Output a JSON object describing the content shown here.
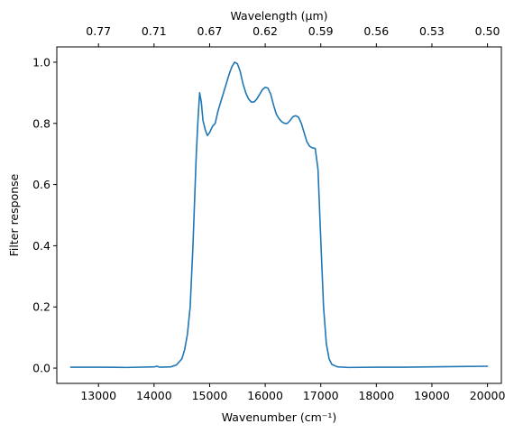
{
  "chart_data": {
    "type": "line",
    "xlabel": "Wavenumber (cm⁻¹)",
    "ylabel": "Filter response",
    "top_xlabel": "Wavelength (μm)",
    "xlim": [
      12250,
      20250
    ],
    "ylim": [
      -0.05,
      1.05
    ],
    "xticks": [
      13000,
      14000,
      15000,
      16000,
      17000,
      18000,
      19000,
      20000
    ],
    "yticks": [
      0.0,
      0.2,
      0.4,
      0.6,
      0.8,
      1.0
    ],
    "top_ticks": [
      {
        "label": "0.77",
        "wavenumber": 13000
      },
      {
        "label": "0.71",
        "wavenumber": 14000
      },
      {
        "label": "0.67",
        "wavenumber": 15000
      },
      {
        "label": "0.62",
        "wavenumber": 16000
      },
      {
        "label": "0.59",
        "wavenumber": 17000
      },
      {
        "label": "0.56",
        "wavenumber": 18000
      },
      {
        "label": "0.53",
        "wavenumber": 19000
      },
      {
        "label": "0.50",
        "wavenumber": 20000
      }
    ],
    "grid": false,
    "series": [
      {
        "color": "#1f77b4",
        "points": [
          [
            12500,
            0.003
          ],
          [
            13000,
            0.003
          ],
          [
            13500,
            0.002
          ],
          [
            14000,
            0.004
          ],
          [
            14050,
            0.006
          ],
          [
            14100,
            0.003
          ],
          [
            14300,
            0.004
          ],
          [
            14400,
            0.01
          ],
          [
            14500,
            0.03
          ],
          [
            14550,
            0.06
          ],
          [
            14600,
            0.11
          ],
          [
            14650,
            0.2
          ],
          [
            14700,
            0.4
          ],
          [
            14730,
            0.55
          ],
          [
            14760,
            0.7
          ],
          [
            14790,
            0.81
          ],
          [
            14820,
            0.9
          ],
          [
            14850,
            0.87
          ],
          [
            14880,
            0.81
          ],
          [
            14920,
            0.78
          ],
          [
            14960,
            0.76
          ],
          [
            15000,
            0.77
          ],
          [
            15050,
            0.79
          ],
          [
            15100,
            0.8
          ],
          [
            15150,
            0.84
          ],
          [
            15200,
            0.87
          ],
          [
            15250,
            0.9
          ],
          [
            15300,
            0.93
          ],
          [
            15350,
            0.96
          ],
          [
            15400,
            0.985
          ],
          [
            15450,
            1.0
          ],
          [
            15500,
            0.995
          ],
          [
            15550,
            0.97
          ],
          [
            15600,
            0.93
          ],
          [
            15650,
            0.9
          ],
          [
            15700,
            0.88
          ],
          [
            15750,
            0.87
          ],
          [
            15800,
            0.87
          ],
          [
            15850,
            0.88
          ],
          [
            15900,
            0.895
          ],
          [
            15950,
            0.91
          ],
          [
            16000,
            0.918
          ],
          [
            16050,
            0.915
          ],
          [
            16100,
            0.895
          ],
          [
            16150,
            0.86
          ],
          [
            16200,
            0.83
          ],
          [
            16250,
            0.815
          ],
          [
            16300,
            0.805
          ],
          [
            16350,
            0.8
          ],
          [
            16400,
            0.8
          ],
          [
            16450,
            0.81
          ],
          [
            16500,
            0.822
          ],
          [
            16550,
            0.825
          ],
          [
            16600,
            0.82
          ],
          [
            16650,
            0.8
          ],
          [
            16700,
            0.77
          ],
          [
            16750,
            0.74
          ],
          [
            16800,
            0.725
          ],
          [
            16850,
            0.72
          ],
          [
            16900,
            0.718
          ],
          [
            16950,
            0.65
          ],
          [
            17000,
            0.42
          ],
          [
            17050,
            0.2
          ],
          [
            17100,
            0.08
          ],
          [
            17150,
            0.03
          ],
          [
            17200,
            0.012
          ],
          [
            17300,
            0.004
          ],
          [
            17500,
            0.002
          ],
          [
            18000,
            0.003
          ],
          [
            18500,
            0.003
          ],
          [
            19000,
            0.004
          ],
          [
            19500,
            0.005
          ],
          [
            20000,
            0.006
          ]
        ]
      }
    ]
  }
}
